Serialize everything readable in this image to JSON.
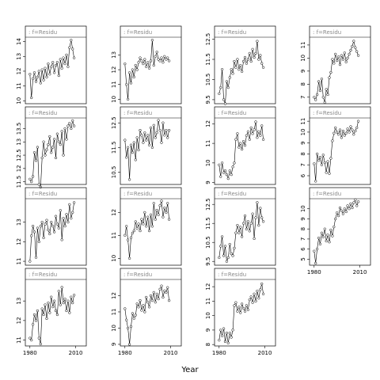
{
  "chart_data": {
    "type": "line",
    "xlabel": "Year",
    "panels": [
      {
        "strip": "f=Residu",
        "col": 0,
        "row": 0,
        "ylim": [
          9.8,
          14.3
        ],
        "yticks": [
          10,
          11,
          12,
          13,
          14
        ],
        "xticks": [],
        "y": [
          11.8,
          10.2,
          11.5,
          11.9,
          11.3,
          11.6,
          12.0,
          11.2,
          12.1,
          11.4,
          12.2,
          11.6,
          12.5,
          11.8,
          12.3,
          12.6,
          11.9,
          12.4,
          12.6,
          11.7,
          12.8,
          12.2,
          12.9,
          12.5,
          13.1,
          12.3,
          13.6,
          14.1,
          13.5,
          12.9
        ]
      },
      {
        "strip": "f=Residu",
        "col": 0,
        "row": 1,
        "ylim": [
          11.4,
          13.9
        ],
        "yticks": [
          11.5,
          12.0,
          12.5,
          13.0,
          13.5
        ],
        "xticks": [],
        "y": [
          11.6,
          11.5,
          11.7,
          12.6,
          12.3,
          12.8,
          11.4,
          11.3,
          12.4,
          13.0,
          12.5,
          12.7,
          12.9,
          13.2,
          12.6,
          12.8,
          13.1,
          12.4,
          13.3,
          13.0,
          12.9,
          13.4,
          12.5,
          13.5,
          13.1,
          13.6,
          13.7,
          13.5,
          13.8,
          13.6
        ]
      },
      {
        "strip": "f=Residu",
        "col": 0,
        "row": 2,
        "ylim": [
          10.8,
          14.2
        ],
        "yticks": [
          11.0,
          12.0,
          13.0
        ],
        "xticks": [],
        "y": [
          11.0,
          12.3,
          12.8,
          12.5,
          11.2,
          12.7,
          12.0,
          12.8,
          13.0,
          12.2,
          12.9,
          13.1,
          12.6,
          12.4,
          13.0,
          12.8,
          12.5,
          13.3,
          12.9,
          12.7,
          13.6,
          12.1,
          13.2,
          12.8,
          13.4,
          13.0,
          13.9,
          13.2,
          13.5,
          14.0
        ]
      },
      {
        "strip": "f=Residu",
        "col": 0,
        "row": 3,
        "ylim": [
          10.7,
          14.1
        ],
        "yticks": [
          11.0,
          12.0,
          13.0
        ],
        "xticks": [
          1980,
          2010
        ],
        "y": [
          11.1,
          11.0,
          11.8,
          12.3,
          12.0,
          12.5,
          11.1,
          10.8,
          12.6,
          12.3,
          12.8,
          12.1,
          12.9,
          12.4,
          13.2,
          12.7,
          13.0,
          12.5,
          12.3,
          13.5,
          12.8,
          13.7,
          12.9,
          13.1,
          12.5,
          13.0,
          12.4,
          13.2,
          12.9,
          13.3
        ]
      },
      {
        "strip": "f=Residu",
        "col": 1,
        "row": 0,
        "ylim": [
          9.7,
          14.2
        ],
        "yticks": [
          10,
          11,
          12,
          13
        ],
        "xticks": [],
        "y": [
          12.4,
          11.0,
          10.0,
          11.8,
          11.1,
          12.0,
          11.5,
          12.3,
          12.0,
          12.5,
          12.8,
          12.6,
          12.4,
          12.7,
          12.2,
          12.5,
          12.1,
          12.6,
          14.0,
          12.3,
          12.9,
          13.2,
          12.7,
          12.6,
          12.8,
          12.5,
          12.9,
          12.7,
          12.8,
          12.6
        ]
      },
      {
        "strip": "f=Residu",
        "col": 1,
        "row": 1,
        "ylim": [
          10.0,
          12.7
        ],
        "yticks": [
          10.5,
          11.5,
          12.5
        ],
        "xticks": [],
        "y": [
          11.8,
          11.1,
          11.5,
          10.2,
          11.6,
          11.3,
          11.7,
          11.0,
          11.9,
          11.4,
          12.2,
          12.0,
          11.7,
          12.1,
          11.8,
          12.0,
          11.6,
          12.3,
          11.5,
          12.4,
          11.9,
          12.1,
          12.6,
          12.2,
          11.7,
          12.5,
          12.0,
          12.2,
          11.9,
          12.2
        ]
      },
      {
        "strip": "f=Residu",
        "col": 1,
        "row": 2,
        "ylim": [
          9.7,
          12.6
        ],
        "yticks": [
          10.0,
          11.0,
          12.0
        ],
        "xticks": [],
        "y": [
          11.0,
          11.4,
          10.8,
          10.0,
          10.9,
          11.1,
          11.2,
          11.6,
          11.3,
          11.5,
          11.2,
          11.7,
          11.5,
          12.0,
          11.4,
          11.8,
          11.2,
          11.9,
          11.4,
          12.4,
          11.7,
          12.1,
          11.9,
          12.3,
          12.5,
          11.8,
          12.2,
          12.0,
          12.4,
          11.7
        ]
      },
      {
        "strip": "f=Residu",
        "col": 1,
        "row": 3,
        "ylim": [
          8.9,
          13.0
        ],
        "yticks": [
          9.0,
          10.0,
          11.0,
          12.0
        ],
        "xticks": [
          1980,
          2010
        ],
        "y": [
          11.2,
          10.5,
          10.0,
          9.0,
          10.1,
          10.9,
          10.6,
          10.8,
          11.5,
          11.3,
          11.7,
          11.1,
          11.4,
          11.0,
          11.9,
          11.6,
          11.3,
          12.0,
          11.7,
          12.2,
          11.6,
          12.1,
          11.8,
          12.4,
          12.6,
          11.9,
          12.3,
          12.2,
          12.5,
          11.7
        ]
      },
      {
        "strip": "f=Residu",
        "col": 2,
        "row": 0,
        "ylim": [
          9.3,
          12.6
        ],
        "yticks": [
          9.5,
          10.5,
          11.5,
          12.5
        ],
        "xticks": [],
        "y": [
          9.8,
          10.1,
          11.0,
          9.5,
          9.3,
          10.4,
          10.1,
          10.6,
          11.0,
          10.8,
          11.4,
          11.1,
          11.5,
          11.0,
          11.2,
          10.9,
          11.4,
          11.6,
          11.3,
          11.5,
          11.8,
          11.4,
          12.0,
          11.6,
          11.8,
          12.4,
          11.5,
          11.7,
          11.3,
          11.1
        ]
      },
      {
        "strip": "f=Residu",
        "col": 2,
        "row": 1,
        "ylim": [
          8.9,
          12.3
        ],
        "yticks": [
          9.0,
          10.0,
          11.0,
          12.0
        ],
        "xticks": [],
        "y": [
          9.9,
          9.3,
          10.0,
          9.5,
          9.6,
          9.4,
          9.2,
          9.6,
          9.4,
          9.8,
          10.0,
          11.2,
          11.5,
          10.8,
          11.0,
          10.7,
          11.1,
          10.9,
          11.4,
          11.6,
          11.2,
          11.8,
          11.5,
          11.7,
          12.1,
          11.3,
          11.6,
          11.4,
          11.9,
          11.2
        ]
      },
      {
        "strip": "f=Residu",
        "col": 2,
        "row": 2,
        "ylim": [
          9.3,
          12.8
        ],
        "yticks": [
          9.5,
          10.5,
          11.5,
          12.5
        ],
        "xticks": [],
        "y": [
          9.7,
          10.3,
          10.8,
          9.8,
          10.3,
          9.5,
          9.7,
          10.4,
          9.9,
          9.8,
          10.2,
          11.0,
          11.4,
          11.0,
          11.3,
          10.8,
          11.5,
          11.9,
          11.2,
          11.6,
          11.1,
          11.5,
          12.0,
          10.7,
          11.8,
          12.6,
          11.4,
          12.3,
          11.8,
          11.6
        ]
      },
      {
        "strip": "f=Residu",
        "col": 2,
        "row": 3,
        "ylim": [
          7.9,
          12.5
        ],
        "yticks": [
          8.0,
          9.0,
          10.0,
          11.0,
          12.0
        ],
        "xticks": [
          1980,
          2010
        ],
        "y": [
          8.3,
          9.0,
          8.6,
          9.1,
          8.2,
          8.8,
          8.1,
          8.8,
          8.5,
          9.0,
          10.7,
          10.9,
          10.3,
          10.6,
          10.2,
          10.8,
          10.5,
          10.3,
          10.7,
          10.4,
          11.1,
          11.3,
          10.9,
          11.5,
          11.0,
          11.7,
          11.2,
          11.8,
          12.2,
          11.5
        ]
      },
      {
        "strip": "f=Residu",
        "col": 3,
        "row": 0,
        "ylim": [
          6.5,
          11.6
        ],
        "yticks": [
          7,
          8,
          9,
          10,
          11
        ],
        "xticks": [],
        "y": [
          7.0,
          6.8,
          7.2,
          8.2,
          7.5,
          8.4,
          7.0,
          6.6,
          7.6,
          7.2,
          8.5,
          8.9,
          9.9,
          9.6,
          10.3,
          9.8,
          10.1,
          9.5,
          10.2,
          9.9,
          10.4,
          9.7,
          10.0,
          10.3,
          10.6,
          10.9,
          11.3,
          10.8,
          10.5,
          10.2
        ]
      },
      {
        "strip": "f=Residu",
        "col": 3,
        "row": 1,
        "ylim": [
          5.2,
          11.3
        ],
        "yticks": [
          6,
          7,
          8,
          9,
          10,
          11
        ],
        "xticks": [],
        "y": [
          7.1,
          5.5,
          8.0,
          7.4,
          7.7,
          7.0,
          7.9,
          7.2,
          6.3,
          7.3,
          6.2,
          7.6,
          9.2,
          9.9,
          10.4,
          10.0,
          9.8,
          10.2,
          9.5,
          10.1,
          9.7,
          9.9,
          10.3,
          10.0,
          10.5,
          10.2,
          9.8,
          10.1,
          10.4,
          11.0
        ]
      },
      {
        "strip": "f=Residu",
        "col": 3,
        "row": 2,
        "ylim": [
          4.4,
          11.0
        ],
        "yticks": [
          5,
          6,
          7,
          8,
          9,
          10
        ],
        "xticks": [
          1980,
          2010
        ],
        "y": [
          5.8,
          4.6,
          6.0,
          7.1,
          6.5,
          7.6,
          7.2,
          8.0,
          6.8,
          7.4,
          6.7,
          7.9,
          7.3,
          8.2,
          9.0,
          9.6,
          9.3,
          10.1,
          9.8,
          9.5,
          10.0,
          9.7,
          10.3,
          10.0,
          10.5,
          10.1,
          10.6,
          10.9,
          10.3,
          10.7
        ]
      }
    ]
  }
}
